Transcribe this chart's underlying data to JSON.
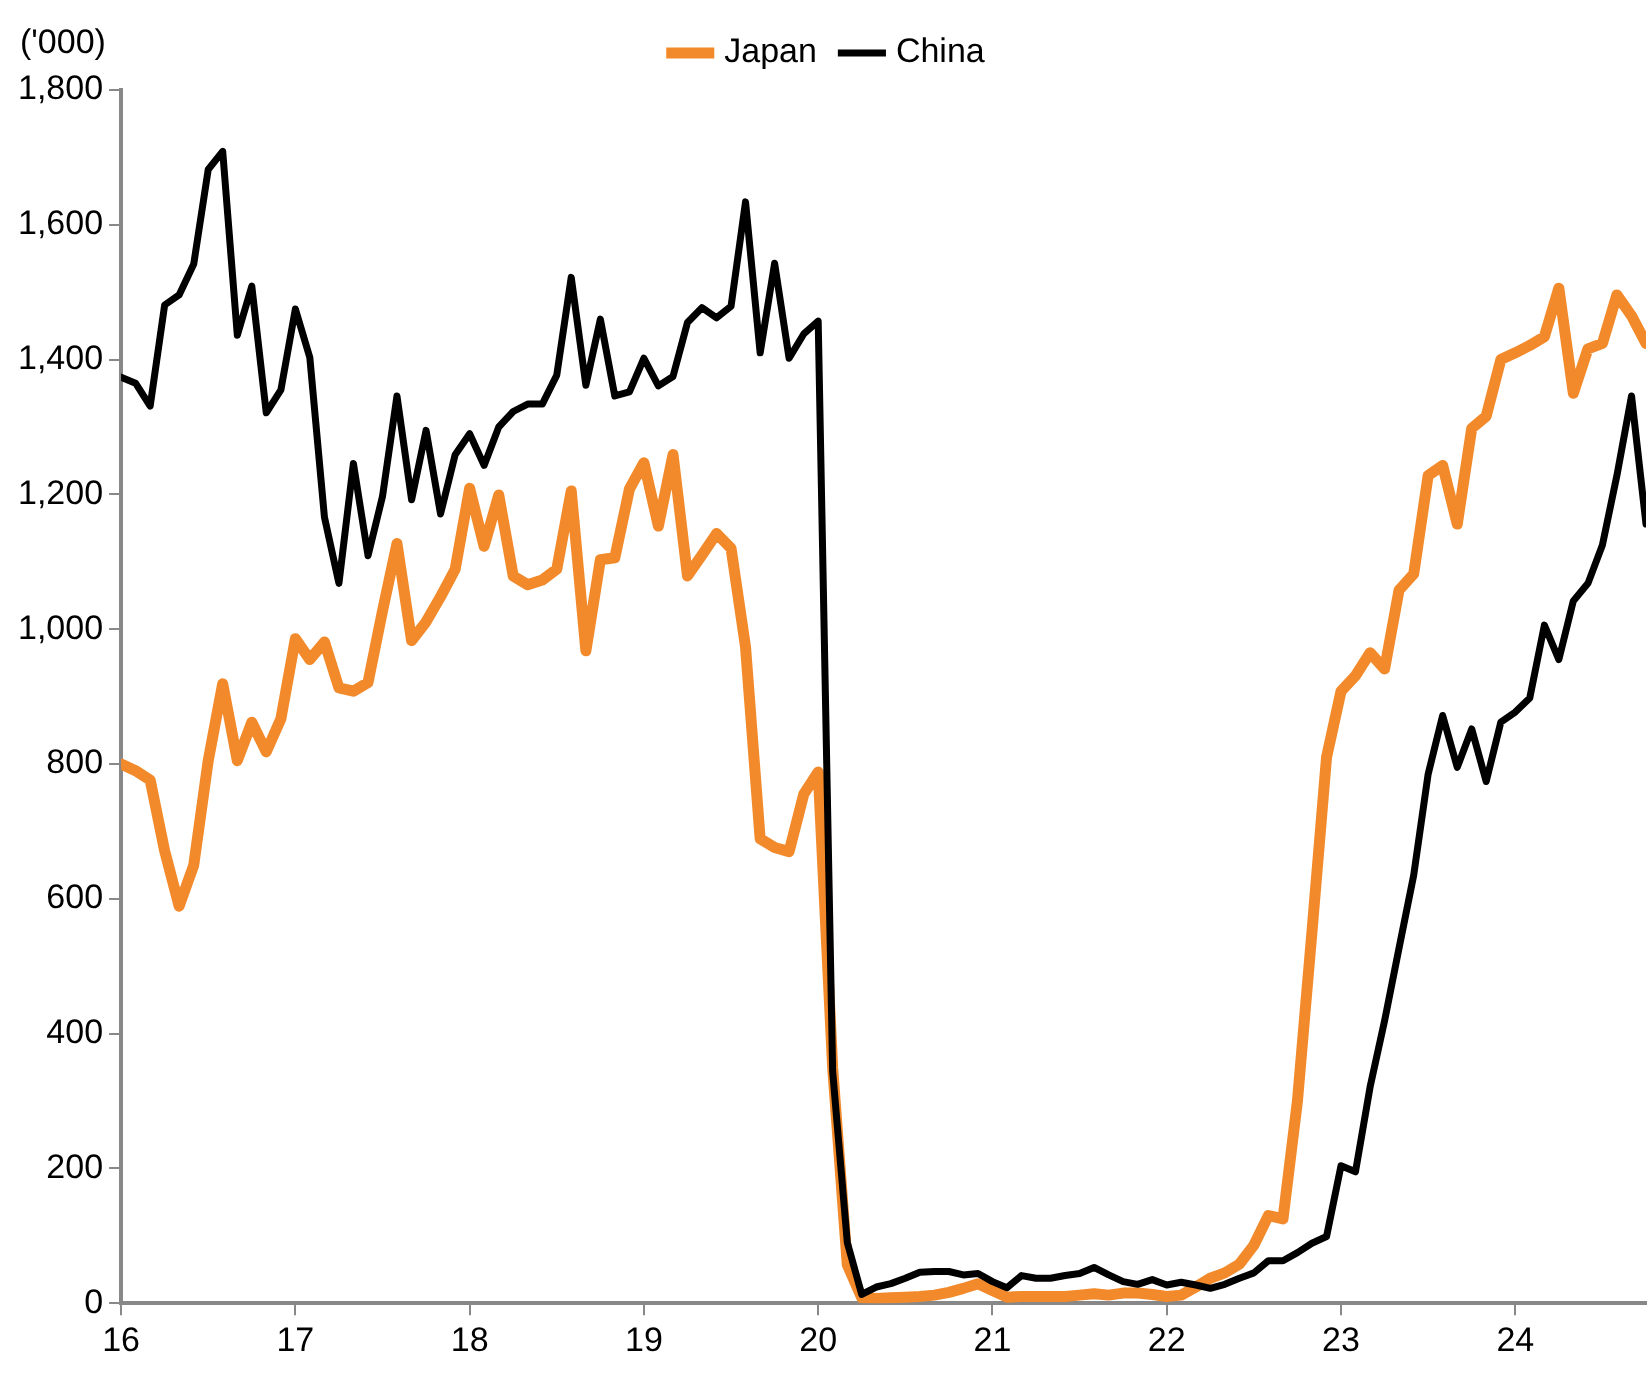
{
  "chart_data": {
    "type": "line",
    "ylabel": "('000)",
    "legend": "top",
    "x": [
      16,
      16.083,
      16.167,
      16.25,
      16.333,
      16.417,
      16.5,
      16.583,
      16.667,
      16.75,
      16.833,
      16.917,
      17,
      17.083,
      17.167,
      17.25,
      17.333,
      17.417,
      17.5,
      17.583,
      17.667,
      17.75,
      17.833,
      17.917,
      18,
      18.083,
      18.167,
      18.25,
      18.333,
      18.417,
      18.5,
      18.583,
      18.667,
      18.75,
      18.833,
      18.917,
      19,
      19.083,
      19.167,
      19.25,
      19.333,
      19.417,
      19.5,
      19.583,
      19.667,
      19.75,
      19.833,
      19.917,
      20,
      20.083,
      20.167,
      20.25,
      20.333,
      20.417,
      20.5,
      20.583,
      20.667,
      20.75,
      20.833,
      20.917,
      21,
      21.083,
      21.167,
      21.25,
      21.333,
      21.417,
      21.5,
      21.583,
      21.667,
      21.75,
      21.833,
      21.917,
      22,
      22.083,
      22.167,
      22.25,
      22.333,
      22.417,
      22.5,
      22.583,
      22.667,
      22.75,
      22.833,
      22.917,
      23,
      23.083,
      23.167,
      23.25,
      23.333,
      23.417,
      23.5,
      23.583,
      23.667,
      23.75,
      23.833,
      23.917,
      24,
      24.083,
      24.167,
      24.25,
      24.333,
      24.417,
      24.5,
      24.583,
      24.667,
      24.75
    ],
    "xlim": [
      16,
      24.75
    ],
    "xticks": [
      16,
      17,
      18,
      19,
      20,
      21,
      22,
      23,
      24
    ],
    "ylim": [
      0,
      1800
    ],
    "yticks": [
      0,
      200,
      400,
      600,
      800,
      {
        "value": 1000,
        "label": "1,000"
      },
      {
        "value": 1200,
        "label": "1,200"
      },
      {
        "value": 1400,
        "label": "1,400"
      },
      {
        "value": 1600,
        "label": "1,600"
      },
      {
        "value": 1800,
        "label": "1,800"
      }
    ],
    "series": [
      {
        "name": "Japan",
        "color": "#f28a2b",
        "values": [
          800,
          790,
          776,
          671,
          589,
          650,
          805,
          919,
          805,
          862,
          818,
          867,
          986,
          955,
          981,
          913,
          908,
          921,
          1027,
          1127,
          983,
          1011,
          1048,
          1089,
          1209,
          1123,
          1199,
          1079,
          1066,
          1073,
          1089,
          1205,
          968,
          1103,
          1106,
          1208,
          1247,
          1153,
          1259,
          1079,
          1110,
          1142,
          1120,
          974,
          689,
          676,
          670,
          755,
          788,
          350,
          57,
          8,
          7,
          8,
          9,
          10,
          12,
          16,
          22,
          29,
          19,
          9,
          10,
          10,
          10,
          10,
          12,
          14,
          12,
          15,
          15,
          13,
          10,
          12,
          24,
          37,
          45,
          58,
          86,
          130,
          125,
          300,
          550,
          810,
          908,
          931,
          965,
          941,
          1058,
          1082,
          1228,
          1243,
          1156,
          1298,
          1316,
          1400,
          1410,
          1421,
          1434,
          1506,
          1350,
          1416,
          1424,
          1496,
          1465,
          1424
        ]
      },
      {
        "name": "China",
        "color": "#000000",
        "values": [
          1374,
          1365,
          1331,
          1481,
          1496,
          1542,
          1682,
          1709,
          1436,
          1509,
          1321,
          1355,
          1475,
          1403,
          1166,
          1068,
          1246,
          1109,
          1197,
          1346,
          1192,
          1295,
          1171,
          1259,
          1290,
          1243,
          1300,
          1323,
          1334,
          1334,
          1377,
          1522,
          1362,
          1460,
          1346,
          1352,
          1402,
          1361,
          1375,
          1455,
          1477,
          1462,
          1479,
          1634,
          1410,
          1543,
          1402,
          1438,
          1457,
          344,
          90,
          13,
          24,
          29,
          37,
          46,
          47,
          47,
          42,
          44,
          32,
          23,
          41,
          37,
          37,
          41,
          44,
          53,
          42,
          32,
          28,
          35,
          27,
          31,
          27,
          22,
          28,
          37,
          45,
          63,
          63,
          75,
          89,
          99,
          204,
          195,
          321,
          419,
          527,
          635,
          785,
          872,
          795,
          852,
          774,
          862,
          877,
          898,
          1006,
          955,
          1042,
          1068,
          1125,
          1228,
          1346,
          1156
        ]
      }
    ]
  }
}
